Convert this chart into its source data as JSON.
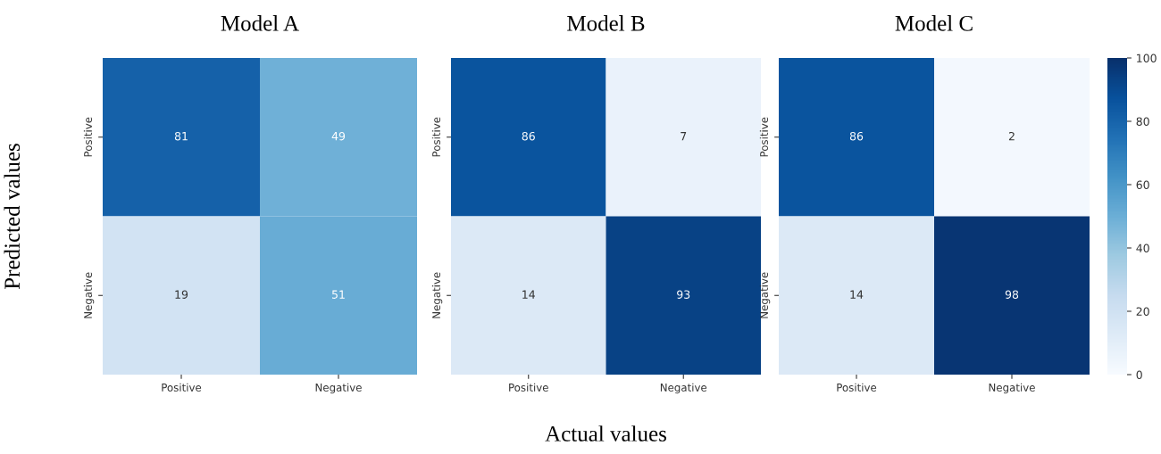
{
  "chart_data": [
    {
      "type": "heatmap",
      "title": "Model A",
      "ylabel": "Predicted values",
      "categories": [
        "Positive",
        "Negative"
      ],
      "y_categories": [
        "Positive",
        "Negative"
      ],
      "cells": [
        [
          81,
          49
        ],
        [
          19,
          51
        ]
      ],
      "data_labels": true
    },
    {
      "type": "heatmap",
      "title": "Model B",
      "xlabel": "Actual values",
      "categories": [
        "Positive",
        "Negative"
      ],
      "y_categories": [
        "Positive",
        "Negative"
      ],
      "cells": [
        [
          86,
          7
        ],
        [
          14,
          93
        ]
      ],
      "data_labels": true
    },
    {
      "type": "heatmap",
      "title": "Model C",
      "categories": [
        "Positive",
        "Negative"
      ],
      "y_categories": [
        "Positive",
        "Negative"
      ],
      "cells": [
        [
          86,
          2
        ],
        [
          14,
          98
        ]
      ],
      "data_labels": true,
      "clim": [
        0,
        100
      ],
      "cticks": [
        0,
        20,
        40,
        60,
        80,
        100
      ]
    }
  ]
}
